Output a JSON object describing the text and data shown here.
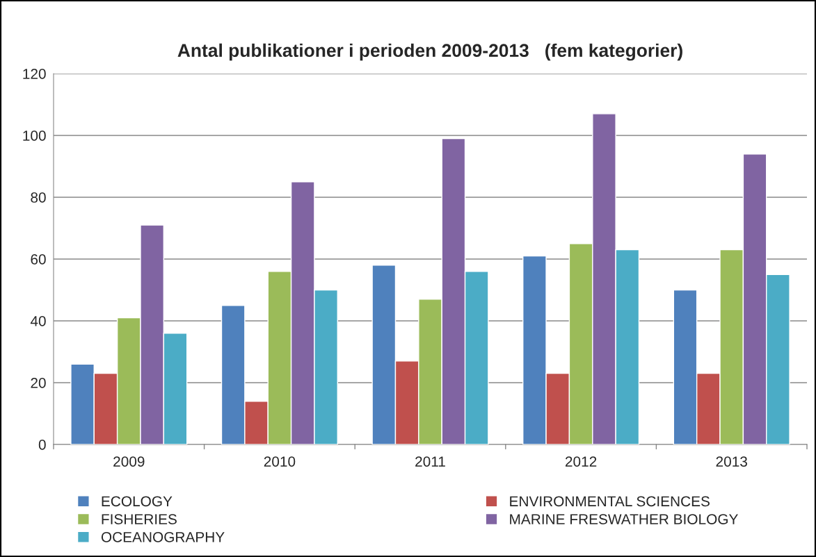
{
  "chart_data": {
    "type": "bar",
    "title": "Antal publikationer i perioden 2009-2013   (fem kategorier)",
    "categories": [
      "2009",
      "2010",
      "2011",
      "2012",
      "2013"
    ],
    "series": [
      {
        "name": "ECOLOGY",
        "color": "#4f81bd",
        "values": [
          26,
          45,
          58,
          61,
          50
        ]
      },
      {
        "name": "ENVIRONMENTAL SCIENCES",
        "color": "#c0504d",
        "values": [
          23,
          14,
          27,
          23,
          23
        ]
      },
      {
        "name": "FISHERIES",
        "color": "#9bbb59",
        "values": [
          41,
          56,
          47,
          65,
          63
        ]
      },
      {
        "name": "MARINE FRESWATHER BIOLOGY",
        "color": "#8064a2",
        "values": [
          71,
          85,
          99,
          107,
          94
        ]
      },
      {
        "name": "OCEANOGRAPHY",
        "color": "#4bacc6",
        "values": [
          36,
          50,
          56,
          63,
          55
        ]
      }
    ],
    "ylim": [
      0,
      120
    ],
    "yticks": [
      0,
      20,
      40,
      60,
      80,
      100,
      120
    ],
    "grid": "y",
    "legend": "bottom"
  }
}
